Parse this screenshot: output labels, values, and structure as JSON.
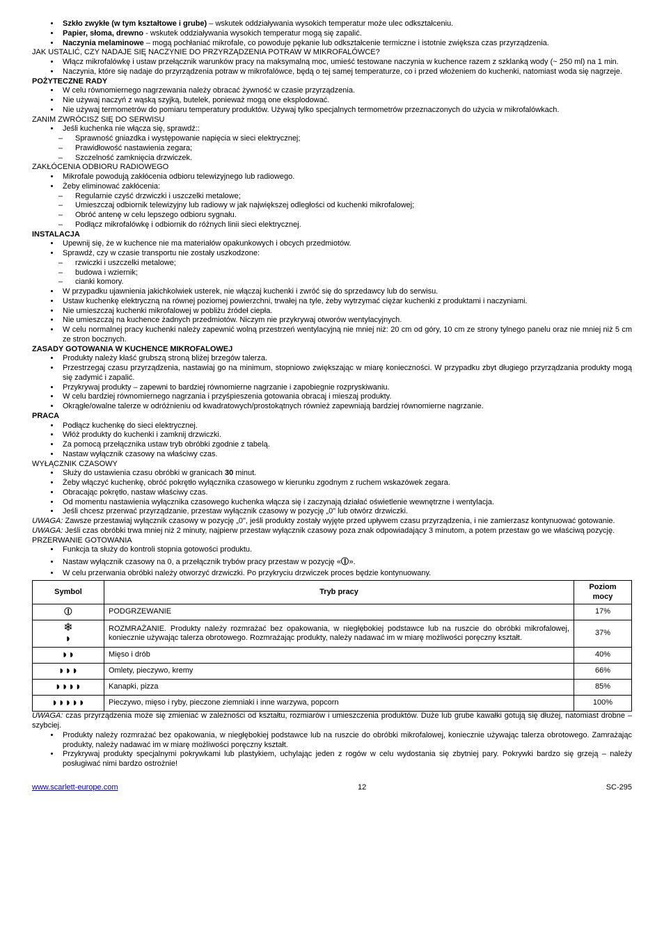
{
  "bullets1": [
    {
      "bold": "Szkło zwykłe (w tym kształtowe i grube)",
      "rest": " – wskutek oddziaływania wysokich temperatur może ulec odkształceniu."
    },
    {
      "bold": "Papier, słoma, drewno",
      "rest": " -  wskutek oddziaływania wysokich temperatur mogą się zapalić."
    },
    {
      "bold": "Naczynia melaminowe",
      "rest": " – mogą pochłaniać mikrofale, co powoduje pękanie lub odkształcenie termiczne i istotnie zwiększa czas przyrządzenia."
    }
  ],
  "line_jak": "JAK USTALIĆ, CZY NADAJE SIĘ NACZYNIE DO PRZYRZĄDZENIA POTRAW W MIKROFALÓWCE?",
  "bullets2": [
    "Włącz mikrofalówkę i ustaw przełącznik warunków pracy na maksymalną moc, umieść testowane naczynia w kuchence razem z szklanką wody (~ 250 ml) na 1 min.",
    "Naczynia, które się nadaje do przyrządzenia potraw w mikrofalówce, będą o tej samej temperaturze, co i przed włożeniem do kuchenki, natomiast woda się nagrzeje."
  ],
  "h_rady": "POŻYTECZNE RADY",
  "bullets3": [
    "W celu równomiernego nagrzewania należy obracać żywność w czasie przyrządzenia.",
    "Nie używaj naczyń z wąską szyjką, butelek, ponieważ mogą one eksplodować.",
    "Nie używaj termometrów do pomiaru temperatury produktów. Używaj tylko specjalnych termometrów przeznaczonych do użycia w mikrofalówkach."
  ],
  "line_zanim": "ZANIM ZWRÓCISZ SIĘ DO  SERWISU",
  "bullet_sprawdz": "Jeśli kuchenka nie włącza się, sprawdź::",
  "dashes1": [
    "Sprawność gniazdka i występowanie napięcia w sieci elektrycznej;",
    "Prawidłowość nastawienia zegara;",
    "Szczelność zamknięcia drzwiczek."
  ],
  "line_zaklocenia": "ZAKŁÓCENIA ODBIORU RADIOWEGO",
  "bullets4": [
    "Mikrofale powodują zakłócenia odbioru telewizyjnego lub radiowego.",
    "Żeby eliminować zakłócenia:"
  ],
  "dashes2": [
    "Regularnie czyść drzwiczki i uszczelki metalowe;",
    "Umieszczaj odbiornik telewizyjny lub radiowy w jak największej odległości od kuchenki mikrofalowej;",
    "Obróć antenę w celu lepszego odbioru sygnału.",
    "Podłącz mikrofalówkę i odbiornik do różnych linii sieci elektrycznej."
  ],
  "h_instalacja": "INSTALACJA",
  "bullets5": [
    "Upewnij się, że w kuchence nie ma materiałów opakunkowych i obcych przedmiotów.",
    "Sprawdź, czy w czasie transportu nie zostały uszkodzone:"
  ],
  "dashes3": [
    "rzwiczki i uszczelki metalowe;",
    "budowa i wziernik;",
    "cianki komory."
  ],
  "bullets6": [
    "W przypadku ujawnienia jakichkolwiek usterek, nie włączaj kuchenki i zwróć się do sprzedawcy lub do serwisu.",
    "Ustaw kuchenkę elektryczną na równej poziomej powierzchni, trwałej na tyle, żeby wytrzymać ciężar kuchenki z produktami i naczyniami.",
    "Nie umieszczaj kuchenki mikrofalowej w pobliżu źródeł ciepła.",
    "Nie umieszczaj na kuchence żadnych przedmiotów. Niczym nie przykrywaj otworów wentylacyjnych.",
    "W celu normalnej pracy kuchenki należy zapewnić wolną przestrzeń wentylacyjną nie mniej niż: 20 cm od góry, 10 cm ze strony tylnego panelu oraz nie mniej niż 5 cm ze stron bocznych."
  ],
  "h_zasady": "ZASADY GOTOWANIA W KUCHENCE MIKROFALOWEJ",
  "bullets7": [
    "Produkty należy kłaść grubszą stroną bliżej brzegów talerza.",
    "Przestrzegaj czasu przyrządzenia, nastawiaj go na minimum, stopniowo zwiększając w miarę konieczności. W przypadku zbyt długiego przyrządzania produkty mogą się zadymić i zapalić.",
    "Przykrywaj produkty – zapewni to bardziej równomierne nagrzanie i zapobiegnie rozpryskiwaniu.",
    "W celu bardziej równomiernego nagrzania i przyśpieszenia gotowania obracaj i mieszaj produkty.",
    "Okrągłe/owalne talerze w odróżnieniu od kwadratowych/prostokątnych również zapewniają bardziej równomierne nagrzanie."
  ],
  "h_praca": "PRACA",
  "bullets8": [
    "Podłącz kuchenkę do sieci elektrycznej.",
    "Włóż produkty do kuchenki i zamknij drzwiczki.",
    "Za pomocą przełącznika ustaw tryb obróbki zgodnie z tabelą.",
    "Nastaw wyłącznik czasowy na właściwy czas."
  ],
  "line_wyl": "WYŁĄCZNIK CZASOWY",
  "bullets9_part1": "Służy do ustawienia czasu obróbki w granicach ",
  "bullets9_bold": "30",
  "bullets9_part2": " minut.",
  "bullets9_rest": [
    "Żeby włączyć kuchenkę, obróć pokrętło wyłącznika czasowego w kierunku zgodnym z ruchem wskazówek zegara.",
    "Obracając pokrętło, nastaw właściwy czas.",
    "Od momentu nastawienia wyłącznika czasowego kuchenka włącza się i zaczynają działać oświetlenie wewnętrzne i wentylacja.",
    "Jeśli chcesz przerwać przyrządzanie, przestaw wyłącznik czasowy w pozycję „0\" lub otwórz drzwiczki."
  ],
  "uwaga1_i": "UWAGA:",
  "uwaga1_t": " Zawsze przestawiaj wyłącznik czasowy  w pozycję „0\", jeśli produkty zostały wyjęte przed upływem czasu przyrządzenia, i nie zamierzasz kontynuować gotowanie.",
  "uwaga2_i": "UWAGA:",
  "uwaga2_t": " Jeśli czas obróbki trwa mniej niż 2 minuty, najpierw przestaw wyłącznik czasowy poza znak odpowiadający 3 minutom, a potem przestaw go we właściwą pozycję.",
  "line_przerwanie": "PRZERWANIE GOTOWANIA",
  "bullets10": [
    "Funkcja ta służy do kontroli stopnia gotowości produktu."
  ],
  "bullet_nastaw_pre": "Nastaw wyłącznik czasowy na 0, a przełącznik trybów pracy przestaw w pozycję «",
  "bullet_nastaw_post": "».",
  "bullet_wcelu": "W celu przerwania obróbki należy otworzyć drzwiczki. Po przykryciu drzwiczek proces będzie kontynuowany.",
  "table": {
    "headers": [
      "Symbol",
      "Tryb pracy",
      "Poziom mocy"
    ],
    "rows": [
      {
        "sym": "⦶",
        "mode": "PODGRZEWANIE",
        "power": "17%"
      },
      {
        "sym": "❄\n◗",
        "mode": "ROZMRAŻANIE. Produkty należy rozmrażać bez opakowania, w niegłębokiej podstawce lub na ruszcie do obróbki mikrofalowej, koniecznie używając talerza obrotowego. Rozmrażając produkty, należy nadawać im w miarę możliwości poręczny kształt.",
        "power": "37%"
      },
      {
        "sym": "◗◗",
        "mode": "Mięso i drób",
        "power": "40%"
      },
      {
        "sym": "◗◗◗",
        "mode": "Omlety, pieczywo, kremy",
        "power": "66%"
      },
      {
        "sym": "◗◗◗◗",
        "mode": "Kanapki, pizza",
        "power": "85%"
      },
      {
        "sym": "◗◗◗◗◗",
        "mode": "Pieczywo, mięso i ryby, pieczone ziemniaki i inne warzywa, popcorn",
        "power": "100%"
      }
    ]
  },
  "uwaga3_i": "UWAGA:",
  "uwaga3_t": " czas przyrządzenia może się zmieniać w zależności od kształtu, rozmiarów i umieszczenia produktów. Duże lub grube kawałki gotują się dłużej, natomiast drobne – szybciej.",
  "bullets11": [
    "Produkty należy rozmrażać bez opakowania, w niegłębokiej podstawce lub na ruszcie do obróbki mikrofalowej, koniecznie używając talerza obrotowego. Zamrażając produkty, należy nadawać im w miarę możliwości poręczny kształt.",
    "Przykrywaj produkty specjalnymi pokrywkami lub plastykiem, uchylając jeden z rogów w celu wydostania się zbytniej pary. Pokrywki bardzo się grzeją – należy posługiwać nimi bardzo ostrożnie!"
  ],
  "footer": {
    "url": "www.scarlett-europe.com",
    "page": "12",
    "code": "SC-295"
  }
}
